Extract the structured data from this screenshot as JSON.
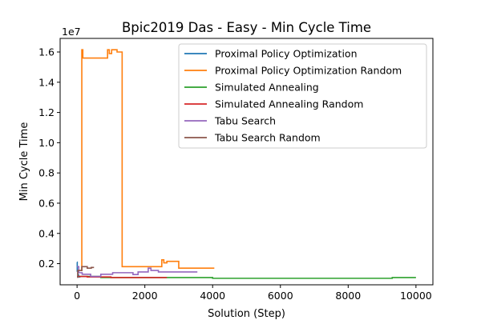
{
  "chart_data": {
    "type": "line",
    "title": "Bpic2019 Das - Easy - Min Cycle Time",
    "xlabel": "Solution (Step)",
    "ylabel": "Min Cycle Time",
    "y_offset_label": "1e7",
    "xlim": [
      -500,
      10500
    ],
    "ylim": [
      600000,
      16900000
    ],
    "x_ticks": [
      0,
      2000,
      4000,
      6000,
      8000,
      10000
    ],
    "x_tick_labels": [
      "0",
      "2000",
      "4000",
      "6000",
      "8000",
      "10000"
    ],
    "y_ticks": [
      2000000,
      4000000,
      6000000,
      8000000,
      10000000,
      12000000,
      14000000,
      16000000
    ],
    "y_tick_labels": [
      "0.2",
      "0.4",
      "0.6",
      "0.8",
      "1.0",
      "1.2",
      "1.4",
      "1.6"
    ],
    "grid": false,
    "legend_position": "top-right",
    "series": [
      {
        "name": "Proximal Policy Optimization",
        "color": "#1f77b4",
        "x": [
          0,
          5,
          5,
          25,
          25,
          45,
          45,
          100
        ],
        "y": [
          2100000,
          2100000,
          1500000,
          1500000,
          1250000,
          1250000,
          1120000,
          1120000
        ]
      },
      {
        "name": "Proximal Policy Optimization Random",
        "color": "#ff7f0e",
        "x": [
          140,
          140,
          170,
          170,
          270,
          270,
          900,
          900,
          950,
          950,
          1020,
          1020,
          1180,
          1180,
          1330,
          1330,
          2500,
          2500,
          2560,
          2560,
          2650,
          2650,
          3000,
          3000,
          4050
        ],
        "y": [
          1500000,
          16150000,
          16150000,
          15600000,
          15600000,
          15600000,
          15600000,
          16150000,
          16150000,
          15900000,
          15900000,
          16150000,
          16150000,
          16000000,
          16000000,
          1800000,
          1800000,
          2250000,
          2250000,
          2050000,
          2050000,
          2150000,
          2150000,
          1700000,
          1700000
        ]
      },
      {
        "name": "Simulated Annealing",
        "color": "#2ca02c",
        "x": [
          0,
          700,
          700,
          4000,
          4000,
          9300,
          9300,
          10000
        ],
        "y": [
          1150000,
          1150000,
          1080000,
          1080000,
          1030000,
          1030000,
          1080000,
          1080000
        ]
      },
      {
        "name": "Simulated Annealing Random",
        "color": "#d62728",
        "x": [
          0,
          300,
          300,
          1000,
          1000,
          2650
        ],
        "y": [
          1150000,
          1150000,
          1120000,
          1120000,
          1080000,
          1080000
        ]
      },
      {
        "name": "Tabu Search",
        "color": "#9467bd",
        "x": [
          0,
          50,
          50,
          150,
          150,
          400,
          400,
          700,
          700,
          1050,
          1050,
          1650,
          1650,
          1800,
          1800,
          2100,
          2100,
          2180,
          2180,
          2400,
          2400,
          3550
        ],
        "y": [
          1800000,
          1800000,
          1400000,
          1400000,
          1300000,
          1300000,
          1150000,
          1150000,
          1300000,
          1300000,
          1400000,
          1400000,
          1280000,
          1280000,
          1450000,
          1450000,
          1700000,
          1700000,
          1550000,
          1550000,
          1450000,
          1450000
        ]
      },
      {
        "name": "Tabu Search Random",
        "color": "#8c564b",
        "x": [
          0,
          20,
          20,
          140,
          140,
          300,
          300,
          420,
          420,
          500
        ],
        "y": [
          1100000,
          1100000,
          1550000,
          1550000,
          1800000,
          1800000,
          1700000,
          1700000,
          1750000,
          1750000
        ]
      }
    ]
  }
}
